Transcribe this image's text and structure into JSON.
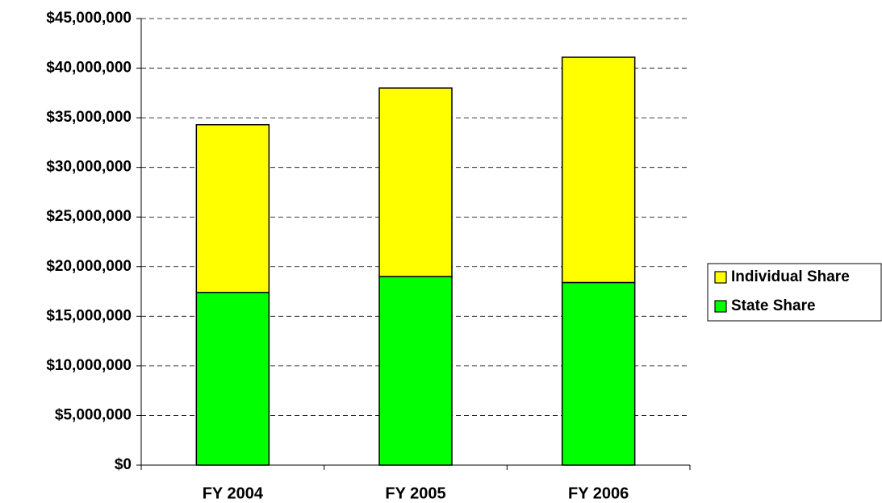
{
  "chart_data": {
    "type": "stacked_bar",
    "categories": [
      "FY 2004",
      "FY 2005",
      "FY 2006"
    ],
    "series": [
      {
        "name": "State Share",
        "color": "#00ff00",
        "values": [
          17400000,
          19000000,
          18400000
        ]
      },
      {
        "name": "Individual Share",
        "color": "#ffff00",
        "values": [
          16900000,
          19000000,
          22700000
        ]
      }
    ],
    "ylim": [
      0,
      45000000
    ],
    "yticks": [
      {
        "value": 0,
        "label": "$0"
      },
      {
        "value": 5000000,
        "label": "$5,000,000"
      },
      {
        "value": 10000000,
        "label": "$10,000,000"
      },
      {
        "value": 15000000,
        "label": "$15,000,000"
      },
      {
        "value": 20000000,
        "label": "$20,000,000"
      },
      {
        "value": 25000000,
        "label": "$25,000,000"
      },
      {
        "value": 30000000,
        "label": "$30,000,000"
      },
      {
        "value": 35000000,
        "label": "$35,000,000"
      },
      {
        "value": 40000000,
        "label": "$40,000,000"
      },
      {
        "value": 45000000,
        "label": "$45,000,000"
      }
    ],
    "grid": true,
    "legend": "right"
  }
}
